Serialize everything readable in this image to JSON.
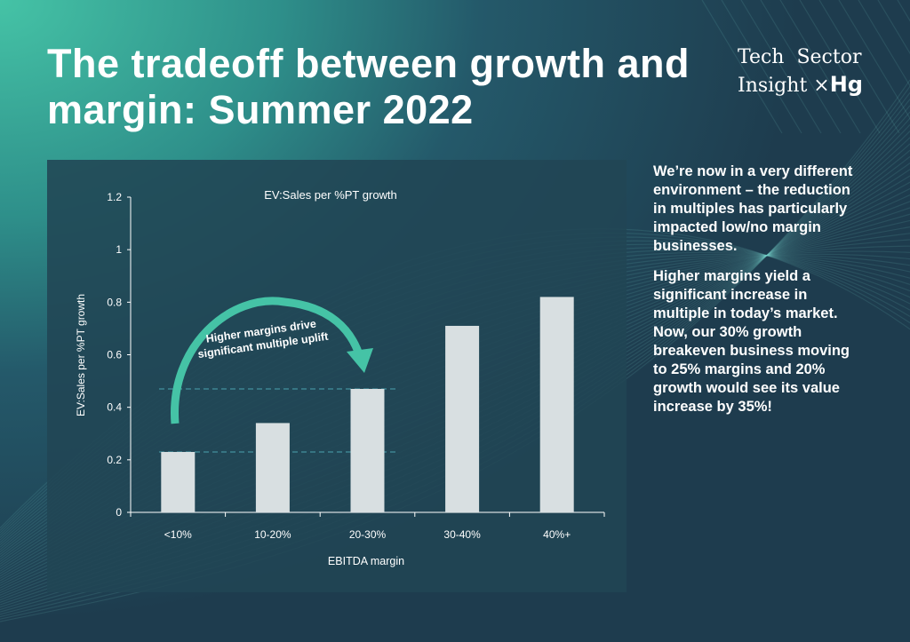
{
  "header": {
    "title": "The tradeoff between growth and margin: Summer 2022"
  },
  "logo": {
    "line1": "Tech  Sector",
    "line2": "Insight",
    "mark": "×",
    "brand": "Hg"
  },
  "side_text": [
    "We’re now in a very different environment – the reduction in multiples has particularly impacted low/no margin businesses.",
    "Higher margins yield a significant increase in multiple in today’s market. Now, our 30% growth breakeven business moving to 25% margins and 20% growth would see its value increase by 35%!"
  ],
  "colors": {
    "bar": "#d8dfe1",
    "arrow": "#45c3a6",
    "dashed": "#4aa3b0",
    "panel": "#214654"
  },
  "chart_data": {
    "type": "bar",
    "title": "EV:Sales per %PT growth",
    "xlabel": "EBITDA margin",
    "ylabel": "EV:Sales per %PT growth",
    "categories": [
      "<10%",
      "10-20%",
      "20-30%",
      "30-40%",
      "40%+"
    ],
    "values": [
      0.23,
      0.34,
      0.47,
      0.71,
      0.82
    ],
    "ylim": [
      0,
      1.2
    ],
    "yticks": [
      0,
      0.2,
      0.4,
      0.6,
      0.8,
      1,
      1.2
    ],
    "ytick_labels": [
      "0",
      "0.2",
      "0.4",
      "0.6",
      "0.8",
      "1",
      "1.2"
    ],
    "grid": false,
    "annotation": {
      "line1": "Higher margins drive",
      "line2": "significant multiple uplift"
    }
  }
}
